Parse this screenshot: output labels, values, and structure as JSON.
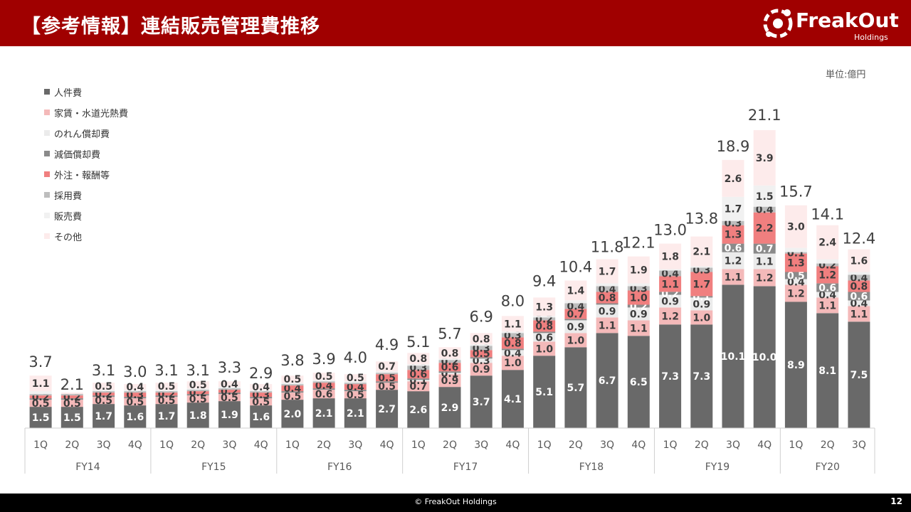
{
  "header": {
    "title": "【参考情報】連結販売管理費推移"
  },
  "logo": {
    "name": "FreakOut",
    "sub": "Holdings"
  },
  "unit_label": "単位:億円",
  "footer": {
    "copyright": "© FreakOut Holdings",
    "page": "12"
  },
  "colors": {
    "header_bg": "#a00000",
    "series": [
      "#696969",
      "#f4b9b9",
      "#ebebeb",
      "#8a8a8a",
      "#f07f7f",
      "#bdbdbd",
      "#f1f1f1",
      "#fdebeb"
    ]
  },
  "chart_data": {
    "type": "bar",
    "stacked": true,
    "categories": [
      "1Q",
      "2Q",
      "3Q",
      "4Q",
      "1Q",
      "2Q",
      "3Q",
      "4Q",
      "1Q",
      "2Q",
      "3Q",
      "4Q",
      "1Q",
      "2Q",
      "3Q",
      "4Q",
      "1Q",
      "2Q",
      "3Q",
      "4Q",
      "1Q",
      "2Q",
      "3Q",
      "4Q",
      "1Q",
      "2Q",
      "3Q"
    ],
    "groups": [
      {
        "name": "FY14",
        "start": 0,
        "count": 4
      },
      {
        "name": "FY15",
        "start": 4,
        "count": 4
      },
      {
        "name": "FY16",
        "start": 8,
        "count": 4
      },
      {
        "name": "FY17",
        "start": 12,
        "count": 4
      },
      {
        "name": "FY18",
        "start": 16,
        "count": 4
      },
      {
        "name": "FY19",
        "start": 20,
        "count": 4
      },
      {
        "name": "FY20",
        "start": 24,
        "count": 3
      }
    ],
    "series": [
      {
        "name": "人件費",
        "values": [
          1.5,
          1.5,
          1.7,
          1.6,
          1.7,
          1.8,
          1.9,
          1.6,
          2.0,
          2.1,
          2.1,
          2.7,
          2.6,
          2.9,
          3.7,
          4.1,
          5.1,
          5.7,
          6.7,
          6.5,
          7.3,
          7.3,
          10.1,
          10.0,
          8.9,
          8.1,
          7.5
        ]
      },
      {
        "name": "家賃・水道光熱費",
        "values": [
          0.5,
          0.5,
          0.5,
          0.5,
          0.5,
          0.5,
          0.5,
          0.5,
          0.5,
          0.6,
          0.5,
          0.5,
          0.7,
          0.9,
          0.9,
          1.0,
          1.0,
          1.0,
          1.1,
          1.1,
          1.2,
          1.0,
          1.1,
          1.2,
          1.2,
          1.1,
          1.1
        ]
      },
      {
        "name": "のれん償却費",
        "values": [
          0.0,
          0.0,
          0.0,
          0.0,
          0.0,
          0.0,
          0.0,
          0.0,
          0.0,
          0.0,
          0.0,
          0.0,
          0.1,
          0.1,
          0.3,
          0.4,
          0.6,
          0.9,
          0.9,
          0.9,
          0.9,
          0.9,
          1.2,
          1.1,
          0.4,
          0.4,
          0.4
        ]
      },
      {
        "name": "減価償却費",
        "values": [
          0.1,
          0.1,
          0.1,
          0.1,
          0.1,
          0.1,
          0.1,
          0.1,
          0.1,
          0.1,
          0.1,
          0.1,
          0.1,
          0.1,
          0.1,
          0.1,
          0.1,
          0.1,
          0.1,
          0.2,
          0.2,
          0.1,
          0.6,
          0.7,
          0.5,
          0.6,
          0.6
        ]
      },
      {
        "name": "外注・報酬等",
        "values": [
          0.2,
          0.2,
          0.2,
          0.3,
          0.2,
          0.2,
          0.2,
          0.3,
          0.4,
          0.4,
          0.4,
          0.5,
          0.6,
          0.6,
          0.5,
          0.8,
          0.8,
          0.7,
          0.8,
          1.0,
          1.1,
          1.7,
          1.3,
          2.2,
          1.3,
          1.2,
          0.8
        ]
      },
      {
        "name": "採用費",
        "values": [
          0.1,
          0.1,
          0.1,
          0.1,
          0.1,
          0.1,
          0.1,
          0.1,
          0.1,
          0.1,
          0.1,
          0.1,
          0.3,
          0.2,
          0.3,
          0.3,
          0.2,
          0.4,
          0.4,
          0.3,
          0.4,
          0.3,
          0.3,
          0.4,
          0.1,
          0.2,
          0.4
        ]
      },
      {
        "name": "販売費",
        "values": [
          0.2,
          0.0,
          0.1,
          0.1,
          0.1,
          0.1,
          0.1,
          0.1,
          0.1,
          0.1,
          0.1,
          0.1,
          0.1,
          0.1,
          0.1,
          0.1,
          0.1,
          0.2,
          0.2,
          0.2,
          0.1,
          0.1,
          1.7,
          1.5,
          0.3,
          0.3,
          0.2
        ]
      },
      {
        "name": "その他",
        "values": [
          1.1,
          0.1,
          0.5,
          0.4,
          0.5,
          0.5,
          0.4,
          0.4,
          0.5,
          0.5,
          0.5,
          0.7,
          0.8,
          0.8,
          0.8,
          1.1,
          1.3,
          1.4,
          1.7,
          1.9,
          1.8,
          2.1,
          2.6,
          3.9,
          3.0,
          2.4,
          1.6
        ]
      }
    ],
    "segment_labels": [
      [
        "1.5",
        "1.5",
        "1.7",
        "1.6",
        "1.7",
        "1.8",
        "1.9",
        "1.6",
        "2.0",
        "2.1",
        "2.1",
        "2.7",
        "2.6",
        "2.9",
        "3.7",
        "4.1",
        "5.1",
        "5.7",
        "6.7",
        "6.5",
        "7.3",
        "7.3",
        "10.1",
        "10.0",
        "8.9",
        "8.1",
        "7.5"
      ],
      [
        "0.5",
        "0.5",
        "0.5",
        "0.5",
        "0.5",
        "0.5",
        "0.5",
        "0.5",
        "0.5",
        "0.6",
        "0.5",
        "0.5",
        "0.7",
        "0.9",
        "0.9",
        "1.0",
        "1.0",
        "1.0",
        "1.1",
        "1.1",
        "1.2",
        "1.0",
        "1.1",
        "1.2",
        "1.2",
        "1.1",
        "1.1"
      ],
      [
        "",
        "",
        "",
        "",
        "",
        "",
        "",
        "",
        "",
        "",
        "",
        "",
        "0.1",
        "0.1",
        "0.3",
        "0.4",
        "0.6",
        "0.9",
        "0.9",
        "0.9",
        "0.9",
        "0.9",
        "1.2",
        "1.1",
        "0.4",
        "0.4",
        "0.4"
      ],
      [
        "",
        "",
        "",
        "",
        "",
        "",
        "",
        "",
        "",
        "",
        "",
        "",
        "",
        "",
        "",
        "",
        "",
        "",
        "",
        "0.2",
        "0.2",
        "0.1",
        "0.6",
        "0.7",
        "0.5",
        "0.6",
        "0.6"
      ],
      [
        "0.2",
        "0.2",
        "0.2",
        "0.3",
        "0.2",
        "0.2",
        "0.2",
        "0.3",
        "0.4",
        "0.4",
        "0.4",
        "0.5",
        "0.6",
        "0.6",
        "0.5",
        "0.8",
        "0.8",
        "0.7",
        "0.8",
        "1.0",
        "1.1",
        "1.7",
        "1.3",
        "2.2",
        "1.3",
        "1.2",
        "0.8"
      ],
      [
        "",
        "",
        "",
        "",
        "",
        "",
        "",
        "",
        "",
        "",
        "",
        "",
        "0.3",
        "0.2",
        "0.3",
        "0.3",
        "0.2",
        "0.4",
        "0.4",
        "0.3",
        "0.4",
        "0.3",
        "0.3",
        "0.4",
        "0.1",
        "0.2",
        "0.4"
      ],
      [
        "",
        "",
        "",
        "",
        "",
        "",
        "",
        "",
        "",
        "",
        "",
        "",
        "",
        "",
        "",
        "",
        "",
        "",
        "",
        "",
        "",
        "",
        "1.7",
        "1.5",
        "",
        "",
        ""
      ],
      [
        "1.1",
        "",
        "0.5",
        "0.4",
        "0.5",
        "0.5",
        "0.4",
        "0.4",
        "0.5",
        "0.5",
        "0.5",
        "0.7",
        "0.8",
        "0.8",
        "0.8",
        "1.1",
        "1.3",
        "1.4",
        "1.7",
        "1.9",
        "1.8",
        "2.1",
        "2.6",
        "3.9",
        "3.0",
        "2.4",
        "1.6"
      ]
    ],
    "totals": [
      "3.7",
      "2.1",
      "3.1",
      "3.0",
      "3.1",
      "3.1",
      "3.3",
      "2.9",
      "3.8",
      "3.9",
      "4.0",
      "4.9",
      "5.1",
      "5.7",
      "6.9",
      "8.0",
      "9.4",
      "10.4",
      "11.8",
      "12.1",
      "13.0",
      "13.8",
      "18.9",
      "21.1",
      "15.7",
      "14.1",
      "12.4"
    ],
    "total_values": [
      3.7,
      2.1,
      3.1,
      3.0,
      3.1,
      3.1,
      3.3,
      2.9,
      3.8,
      3.9,
      4.0,
      4.9,
      5.1,
      5.7,
      6.9,
      8.0,
      9.4,
      10.4,
      11.8,
      12.1,
      13.0,
      13.8,
      18.9,
      21.1,
      15.7,
      14.1,
      12.4
    ],
    "ylim": [
      0,
      21.1
    ],
    "legend_position": "top-left"
  }
}
